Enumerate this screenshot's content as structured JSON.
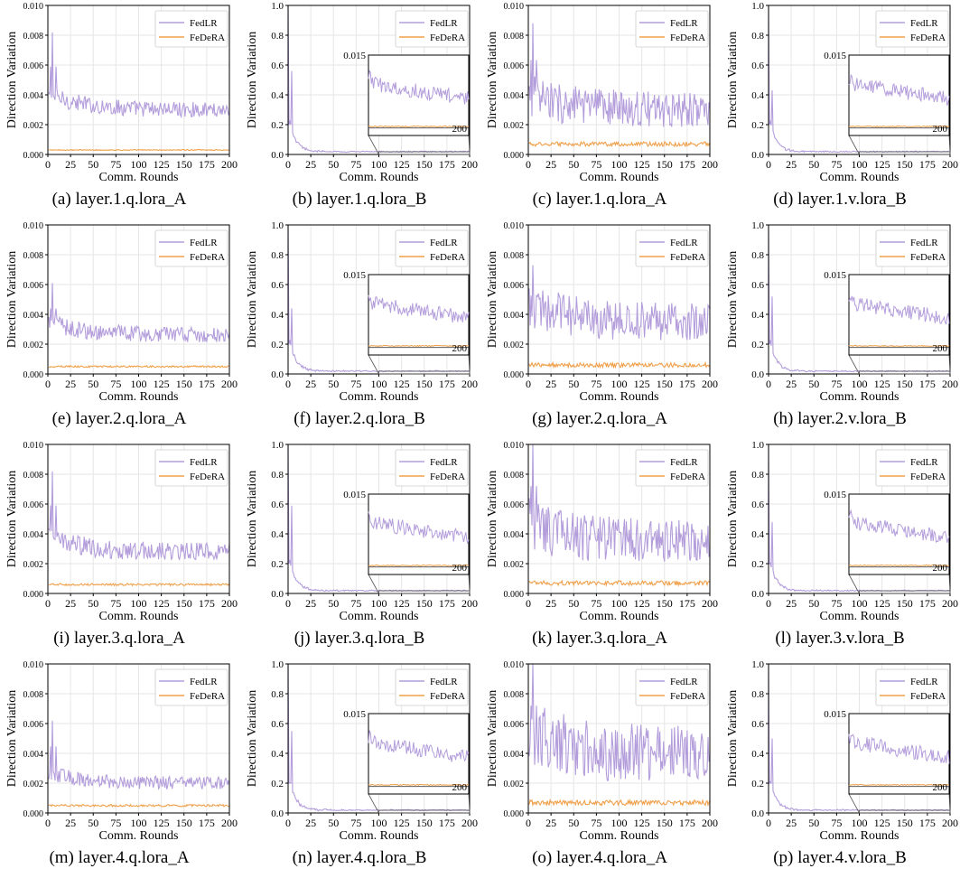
{
  "figure": {
    "colors": {
      "fedlr": "#b39ddb",
      "federa": "#f0a04b",
      "axis": "#000000",
      "grid": "#e6e6e6"
    },
    "x_tick_labels": [
      "0",
      "25",
      "50",
      "75",
      "100",
      "125",
      "150",
      "175",
      "200"
    ],
    "panels": [
      {
        "caption": "(a) layer.1.q.lora_A",
        "kind": "A",
        "level": 0.003,
        "noise": 0.0006,
        "spike": 0.0082,
        "fed": 0.0003,
        "fnoise": 3e-05
      },
      {
        "caption": "(b) layer.1.q.lora_B",
        "kind": "B",
        "spike": 0.56
      },
      {
        "caption": "(c) layer.1.q.lora_A",
        "kind": "A",
        "level": 0.003,
        "noise": 0.0014,
        "spike": 0.0088,
        "fed": 0.0007,
        "fnoise": 0.00015
      },
      {
        "caption": "(d) layer.1.v.lora_B",
        "kind": "B",
        "spike": 0.43
      },
      {
        "caption": "(e) layer.2.q.lora_A",
        "kind": "A",
        "level": 0.0026,
        "noise": 0.0006,
        "spike": 0.0061,
        "fed": 0.0005,
        "fnoise": 6e-05
      },
      {
        "caption": "(f) layer.2.q.lora_B",
        "kind": "B",
        "spike": 0.44
      },
      {
        "caption": "(g) layer.2.q.lora_A",
        "kind": "A",
        "level": 0.0035,
        "noise": 0.0015,
        "spike": 0.0073,
        "fed": 0.0006,
        "fnoise": 0.00015
      },
      {
        "caption": "(h) layer.2.v.lora_B",
        "kind": "B",
        "spike": 0.52
      },
      {
        "caption": "(i) layer.3.q.lora_A",
        "kind": "A",
        "level": 0.0028,
        "noise": 0.0007,
        "spike": 0.0082,
        "fed": 0.0006,
        "fnoise": 7e-05
      },
      {
        "caption": "(j) layer.3.q.lora_B",
        "kind": "B",
        "spike": 0.59
      },
      {
        "caption": "(k) layer.3.q.lora_A",
        "kind": "A",
        "level": 0.0035,
        "noise": 0.0017,
        "spike": 0.01,
        "fed": 0.0007,
        "fnoise": 0.00015
      },
      {
        "caption": "(l) layer.3.v.lora_B",
        "kind": "B",
        "spike": 0.48
      },
      {
        "caption": "(m) layer.4.q.lora_A",
        "kind": "A",
        "level": 0.002,
        "noise": 0.0005,
        "spike": 0.0062,
        "fed": 0.0005,
        "fnoise": 7e-05
      },
      {
        "caption": "(n) layer.4.q.lora_B",
        "kind": "B",
        "spike": 0.55
      },
      {
        "caption": "(o) layer.4.q.lora_A",
        "kind": "A",
        "level": 0.004,
        "noise": 0.0022,
        "spike": 0.01,
        "fed": 0.0007,
        "fnoise": 0.00018
      },
      {
        "caption": "(p) layer.4.v.lora_B",
        "kind": "B",
        "spike": 0.5
      }
    ]
  },
  "chart_data": [
    {
      "type": "line",
      "title": "(a) layer.1.q.lora_A",
      "xlabel": "Comm. Rounds",
      "ylabel": "Direction Variation",
      "xlim": [
        0,
        200
      ],
      "ylim": [
        0,
        0.01
      ],
      "y_ticks": [
        "0.000",
        "0.002",
        "0.004",
        "0.006",
        "0.008",
        "0.010"
      ],
      "legend": "top-right",
      "series": [
        {
          "name": "FedLR",
          "approx_level": 0.003
        },
        {
          "name": "FeDeRA",
          "approx_level": 0.0003
        }
      ]
    },
    {
      "type": "line",
      "title": "(b) layer.1.q.lora_B",
      "xlabel": "Comm. Rounds",
      "ylabel": "Direction Variation",
      "xlim": [
        0,
        200
      ],
      "ylim": [
        0,
        1.0
      ],
      "y_ticks": [
        "0.0",
        "0.2",
        "0.4",
        "0.6",
        "0.8",
        "1.0"
      ],
      "inset_label": "0.015",
      "inset_x_label": "200",
      "legend": "top-right",
      "series": [
        {
          "name": "FedLR",
          "approx_level": 0.01
        },
        {
          "name": "FeDeRA",
          "approx_level": 0.0
        }
      ]
    },
    {
      "type": "line",
      "title": "(c) layer.1.q.lora_A",
      "xlabel": "Comm. Rounds",
      "ylabel": "Direction Variation",
      "xlim": [
        0,
        200
      ],
      "ylim": [
        0,
        0.01
      ],
      "y_ticks": [
        "0.000",
        "0.002",
        "0.004",
        "0.006",
        "0.008",
        "0.010"
      ],
      "legend": "top-right",
      "series": [
        {
          "name": "FedLR",
          "approx_level": 0.003
        },
        {
          "name": "FeDeRA",
          "approx_level": 0.0007
        }
      ]
    },
    {
      "type": "line",
      "title": "(d) layer.1.v.lora_B",
      "xlabel": "Comm. Rounds",
      "ylabel": "Direction Variation",
      "xlim": [
        0,
        200
      ],
      "ylim": [
        0,
        1.0
      ],
      "y_ticks": [
        "0.0",
        "0.2",
        "0.4",
        "0.6",
        "0.8",
        "1.0"
      ],
      "inset_label": "0.015",
      "inset_x_label": "200",
      "legend": "top-right",
      "series": [
        {
          "name": "FedLR",
          "approx_level": 0.01
        },
        {
          "name": "FeDeRA",
          "approx_level": 0.0
        }
      ]
    },
    {
      "type": "line",
      "title": "(e) layer.2.q.lora_A",
      "xlabel": "Comm. Rounds",
      "ylabel": "Direction Variation",
      "xlim": [
        0,
        200
      ],
      "ylim": [
        0,
        0.01
      ],
      "y_ticks": [
        "0.000",
        "0.002",
        "0.004",
        "0.006",
        "0.008",
        "0.010"
      ],
      "legend": "top-right",
      "series": [
        {
          "name": "FedLR",
          "approx_level": 0.0026
        },
        {
          "name": "FeDeRA",
          "approx_level": 0.0005
        }
      ]
    },
    {
      "type": "line",
      "title": "(f) layer.2.q.lora_B",
      "xlabel": "Comm. Rounds",
      "ylabel": "Direction Variation",
      "xlim": [
        0,
        200
      ],
      "ylim": [
        0,
        1.0
      ],
      "y_ticks": [
        "0.0",
        "0.2",
        "0.4",
        "0.6",
        "0.8",
        "1.0"
      ],
      "inset_label": "0.015",
      "inset_x_label": "200",
      "legend": "top-right",
      "series": [
        {
          "name": "FedLR",
          "approx_level": 0.01
        },
        {
          "name": "FeDeRA",
          "approx_level": 0.0
        }
      ]
    },
    {
      "type": "line",
      "title": "(g) layer.2.q.lora_A",
      "xlabel": "Comm. Rounds",
      "ylabel": "Direction Variation",
      "xlim": [
        0,
        200
      ],
      "ylim": [
        0,
        0.01
      ],
      "y_ticks": [
        "0.000",
        "0.002",
        "0.004",
        "0.006",
        "0.008",
        "0.010"
      ],
      "legend": "top-right",
      "series": [
        {
          "name": "FedLR",
          "approx_level": 0.0035
        },
        {
          "name": "FeDeRA",
          "approx_level": 0.0006
        }
      ]
    },
    {
      "type": "line",
      "title": "(h) layer.2.v.lora_B",
      "xlabel": "Comm. Rounds",
      "ylabel": "Direction Variation",
      "xlim": [
        0,
        200
      ],
      "ylim": [
        0,
        1.0
      ],
      "y_ticks": [
        "0.0",
        "0.2",
        "0.4",
        "0.6",
        "0.8",
        "1.0"
      ],
      "inset_label": "0.015",
      "inset_x_label": "200",
      "legend": "top-right",
      "series": [
        {
          "name": "FedLR",
          "approx_level": 0.01
        },
        {
          "name": "FeDeRA",
          "approx_level": 0.0
        }
      ]
    },
    {
      "type": "line",
      "title": "(i) layer.3.q.lora_A",
      "xlabel": "Comm. Rounds",
      "ylabel": "Direction Variation",
      "xlim": [
        0,
        200
      ],
      "ylim": [
        0,
        0.01
      ],
      "y_ticks": [
        "0.000",
        "0.002",
        "0.004",
        "0.006",
        "0.008",
        "0.010"
      ],
      "legend": "top-right",
      "series": [
        {
          "name": "FedLR",
          "approx_level": 0.0028
        },
        {
          "name": "FeDeRA",
          "approx_level": 0.0006
        }
      ]
    },
    {
      "type": "line",
      "title": "(j) layer.3.q.lora_B",
      "xlabel": "Comm. Rounds",
      "ylabel": "Direction Variation",
      "xlim": [
        0,
        200
      ],
      "ylim": [
        0,
        1.0
      ],
      "y_ticks": [
        "0.0",
        "0.2",
        "0.4",
        "0.6",
        "0.8",
        "1.0"
      ],
      "inset_label": "0.015",
      "inset_x_label": "200",
      "legend": "top-right",
      "series": [
        {
          "name": "FedLR",
          "approx_level": 0.01
        },
        {
          "name": "FeDeRA",
          "approx_level": 0.0
        }
      ]
    },
    {
      "type": "line",
      "title": "(k) layer.3.q.lora_A",
      "xlabel": "Comm. Rounds",
      "ylabel": "Direction Variation",
      "xlim": [
        0,
        200
      ],
      "ylim": [
        0,
        0.01
      ],
      "y_ticks": [
        "0.000",
        "0.002",
        "0.004",
        "0.006",
        "0.008",
        "0.010"
      ],
      "legend": "top-right",
      "series": [
        {
          "name": "FedLR",
          "approx_level": 0.0035
        },
        {
          "name": "FeDeRA",
          "approx_level": 0.0007
        }
      ]
    },
    {
      "type": "line",
      "title": "(l) layer.3.v.lora_B",
      "xlabel": "Comm. Rounds",
      "ylabel": "Direction Variation",
      "xlim": [
        0,
        200
      ],
      "ylim": [
        0,
        1.0
      ],
      "y_ticks": [
        "0.0",
        "0.2",
        "0.4",
        "0.6",
        "0.8",
        "1.0"
      ],
      "inset_label": "0.015",
      "inset_x_label": "200",
      "legend": "top-right",
      "series": [
        {
          "name": "FedLR",
          "approx_level": 0.01
        },
        {
          "name": "FeDeRA",
          "approx_level": 0.0
        }
      ]
    },
    {
      "type": "line",
      "title": "(m) layer.4.q.lora_A",
      "xlabel": "Comm. Rounds",
      "ylabel": "Direction Variation",
      "xlim": [
        0,
        200
      ],
      "ylim": [
        0,
        0.01
      ],
      "y_ticks": [
        "0.000",
        "0.002",
        "0.004",
        "0.006",
        "0.008",
        "0.010"
      ],
      "legend": "top-right",
      "series": [
        {
          "name": "FedLR",
          "approx_level": 0.002
        },
        {
          "name": "FeDeRA",
          "approx_level": 0.0005
        }
      ]
    },
    {
      "type": "line",
      "title": "(n) layer.4.q.lora_B",
      "xlabel": "Comm. Rounds",
      "ylabel": "Direction Variation",
      "xlim": [
        0,
        200
      ],
      "ylim": [
        0,
        1.0
      ],
      "y_ticks": [
        "0.0",
        "0.2",
        "0.4",
        "0.6",
        "0.8",
        "1.0"
      ],
      "inset_label": "0.015",
      "inset_x_label": "200",
      "legend": "top-right",
      "series": [
        {
          "name": "FedLR",
          "approx_level": 0.01
        },
        {
          "name": "FeDeRA",
          "approx_level": 0.0
        }
      ]
    },
    {
      "type": "line",
      "title": "(o) layer.4.q.lora_A",
      "xlabel": "Comm. Rounds",
      "ylabel": "Direction Variation",
      "xlim": [
        0,
        200
      ],
      "ylim": [
        0,
        0.01
      ],
      "y_ticks": [
        "0.000",
        "0.002",
        "0.004",
        "0.006",
        "0.008",
        "0.010"
      ],
      "legend": "top-right",
      "series": [
        {
          "name": "FedLR",
          "approx_level": 0.004
        },
        {
          "name": "FeDeRA",
          "approx_level": 0.0007
        }
      ]
    },
    {
      "type": "line",
      "title": "(p) layer.4.v.lora_B",
      "xlabel": "Comm. Rounds",
      "ylabel": "Direction Variation",
      "xlim": [
        0,
        200
      ],
      "ylim": [
        0,
        1.0
      ],
      "y_ticks": [
        "0.0",
        "0.2",
        "0.4",
        "0.6",
        "0.8",
        "1.0"
      ],
      "inset_label": "0.015",
      "inset_x_label": "200",
      "legend": "top-right",
      "series": [
        {
          "name": "FedLR",
          "approx_level": 0.01
        },
        {
          "name": "FeDeRA",
          "approx_level": 0.0
        }
      ]
    }
  ]
}
